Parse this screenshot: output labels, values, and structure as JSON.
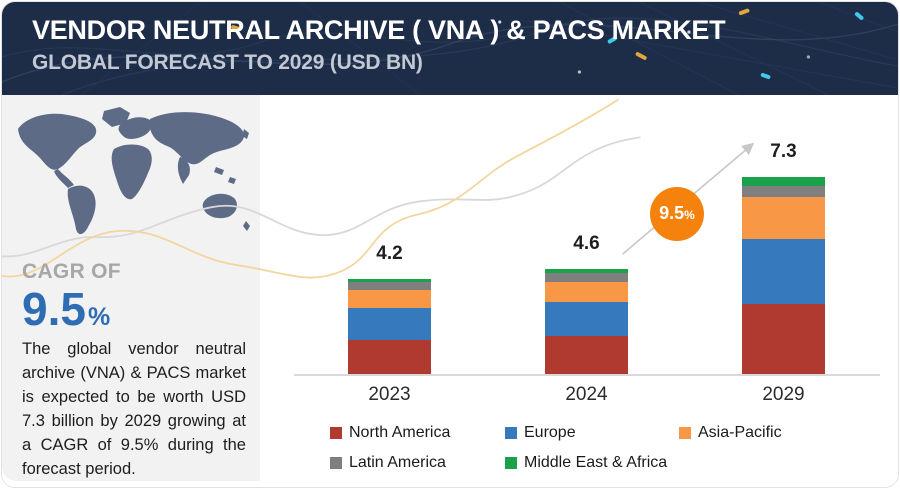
{
  "header": {
    "title": "VENDOR NEUTRAL ARCHIVE ( VNA ) & PACS MARKET",
    "subtitle": "GLOBAL FORECAST TO 2029 (USD BN)"
  },
  "sidebar": {
    "cagr_label": "CAGR OF",
    "cagr_value": "9.5",
    "cagr_unit": "%",
    "description": "The global vendor neutral archive (VNA) & PACS market is expected to be worth USD 7.3 billion by 2029 growing at a CAGR of 9.5% during the forecast period."
  },
  "chart_data": {
    "type": "bar",
    "stacked": true,
    "unit": "USD BN",
    "categories": [
      "2023",
      "2024",
      "2029"
    ],
    "totals": [
      4.2,
      4.6,
      7.3
    ],
    "total_labels": [
      "4.2",
      "4.6",
      "7.3"
    ],
    "series": [
      {
        "name": "North America",
        "color": "#B03A30",
        "values": [
          1.5,
          1.65,
          2.6
        ]
      },
      {
        "name": "Europe",
        "color": "#3679BD",
        "values": [
          1.4,
          1.5,
          2.4
        ]
      },
      {
        "name": "Asia-Pacific",
        "color": "#F89846",
        "values": [
          0.8,
          0.9,
          1.55
        ]
      },
      {
        "name": "Latin America",
        "color": "#7F7F7F",
        "values": [
          0.35,
          0.37,
          0.43
        ]
      },
      {
        "name": "Middle East & Africa",
        "color": "#19A24A",
        "values": [
          0.15,
          0.18,
          0.32
        ]
      }
    ],
    "values_estimated": true,
    "growth_annotation": {
      "value": "9.5",
      "unit": "%",
      "badge_color": "#F5820D"
    },
    "legend_position": "bottom",
    "gridlines": false,
    "baseline_color": "#D9D9D9"
  },
  "colors": {
    "header_bg": "#1D2C47",
    "panel_bg": "#F2F2F3",
    "accent_blue": "#2E6DB4",
    "map_fill": "#5D6B87",
    "wave_yellow": "#F3D59E",
    "wave_gray": "#D8D8D8",
    "arrow_gray": "#C7C7C7"
  }
}
